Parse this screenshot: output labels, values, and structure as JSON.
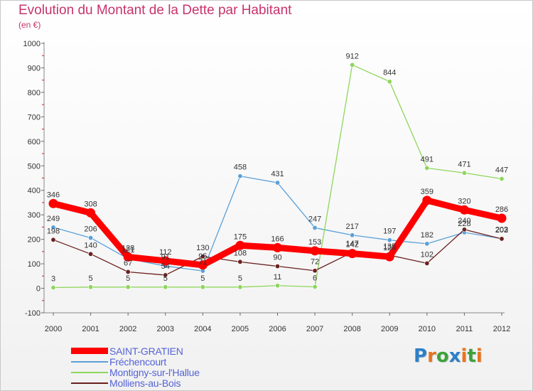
{
  "title": "Evolution du Montant de la Dette par Habitant",
  "subtitle": "(en €)",
  "logo": {
    "letters": [
      "P",
      "r",
      "o",
      "x",
      "i",
      "t",
      "i"
    ],
    "colors": [
      "#2d7fc8",
      "#e8741c",
      "#3ba33b",
      "#2d7fc8",
      "#e8741c",
      "#3ba33b",
      "#e8741c"
    ]
  },
  "chart_data": {
    "type": "line",
    "title": "Evolution du Montant de la Dette par Habitant",
    "ylabel": "(en €)",
    "xlabel": "",
    "x": [
      "2000",
      "2001",
      "2002",
      "2003",
      "2004",
      "2005",
      "2006",
      "2007",
      "2008",
      "2009",
      "2010",
      "2011",
      "2012"
    ],
    "ylim": [
      -100,
      1000
    ],
    "yticks": [
      -100,
      0,
      100,
      200,
      300,
      400,
      500,
      600,
      700,
      800,
      900,
      1000
    ],
    "grid": false,
    "legend_position": "bottom-left",
    "series": [
      {
        "name": "SAINT-GRATIEN",
        "color": "#ff0000",
        "emphasis": "thick",
        "values": [
          346,
          308,
          128,
          112,
          95,
          175,
          166,
          153,
          142,
          129,
          359,
          320,
          286
        ],
        "labels": [
          "346",
          "308",
          "128",
          "112",
          "95",
          "175",
          "166",
          "153",
          "142",
          "129",
          "359",
          "320",
          "286"
        ]
      },
      {
        "name": "Fréchencourt",
        "color": "#5aa0d8",
        "values": [
          249,
          206,
          121,
          91,
          71,
          458,
          431,
          247,
          217,
          197,
          182,
          228,
          203
        ],
        "labels": [
          "249",
          "206",
          "121",
          "91",
          "71",
          "458",
          "431",
          "247",
          "217",
          "197",
          "182",
          "228",
          "203"
        ]
      },
      {
        "name": "Montigny-sur-l'Hallue",
        "color": "#8ed65c",
        "values": [
          3,
          5,
          5,
          5,
          5,
          5,
          11,
          6,
          912,
          844,
          491,
          471,
          447
        ],
        "labels": [
          "3",
          "5",
          "5",
          "5",
          "5",
          "5",
          "11",
          "6",
          "912",
          "844",
          "491",
          "471",
          "447"
        ]
      },
      {
        "name": "Molliens-au-Bois",
        "color": "#6b2020",
        "values": [
          198,
          140,
          67,
          54,
          130,
          108,
          90,
          72,
          147,
          135,
          102,
          240,
          202
        ],
        "labels": [
          "198",
          "140",
          "67",
          "54",
          "130",
          "108",
          "90",
          "72",
          "147",
          "135",
          "102",
          "240",
          "202"
        ]
      }
    ]
  }
}
